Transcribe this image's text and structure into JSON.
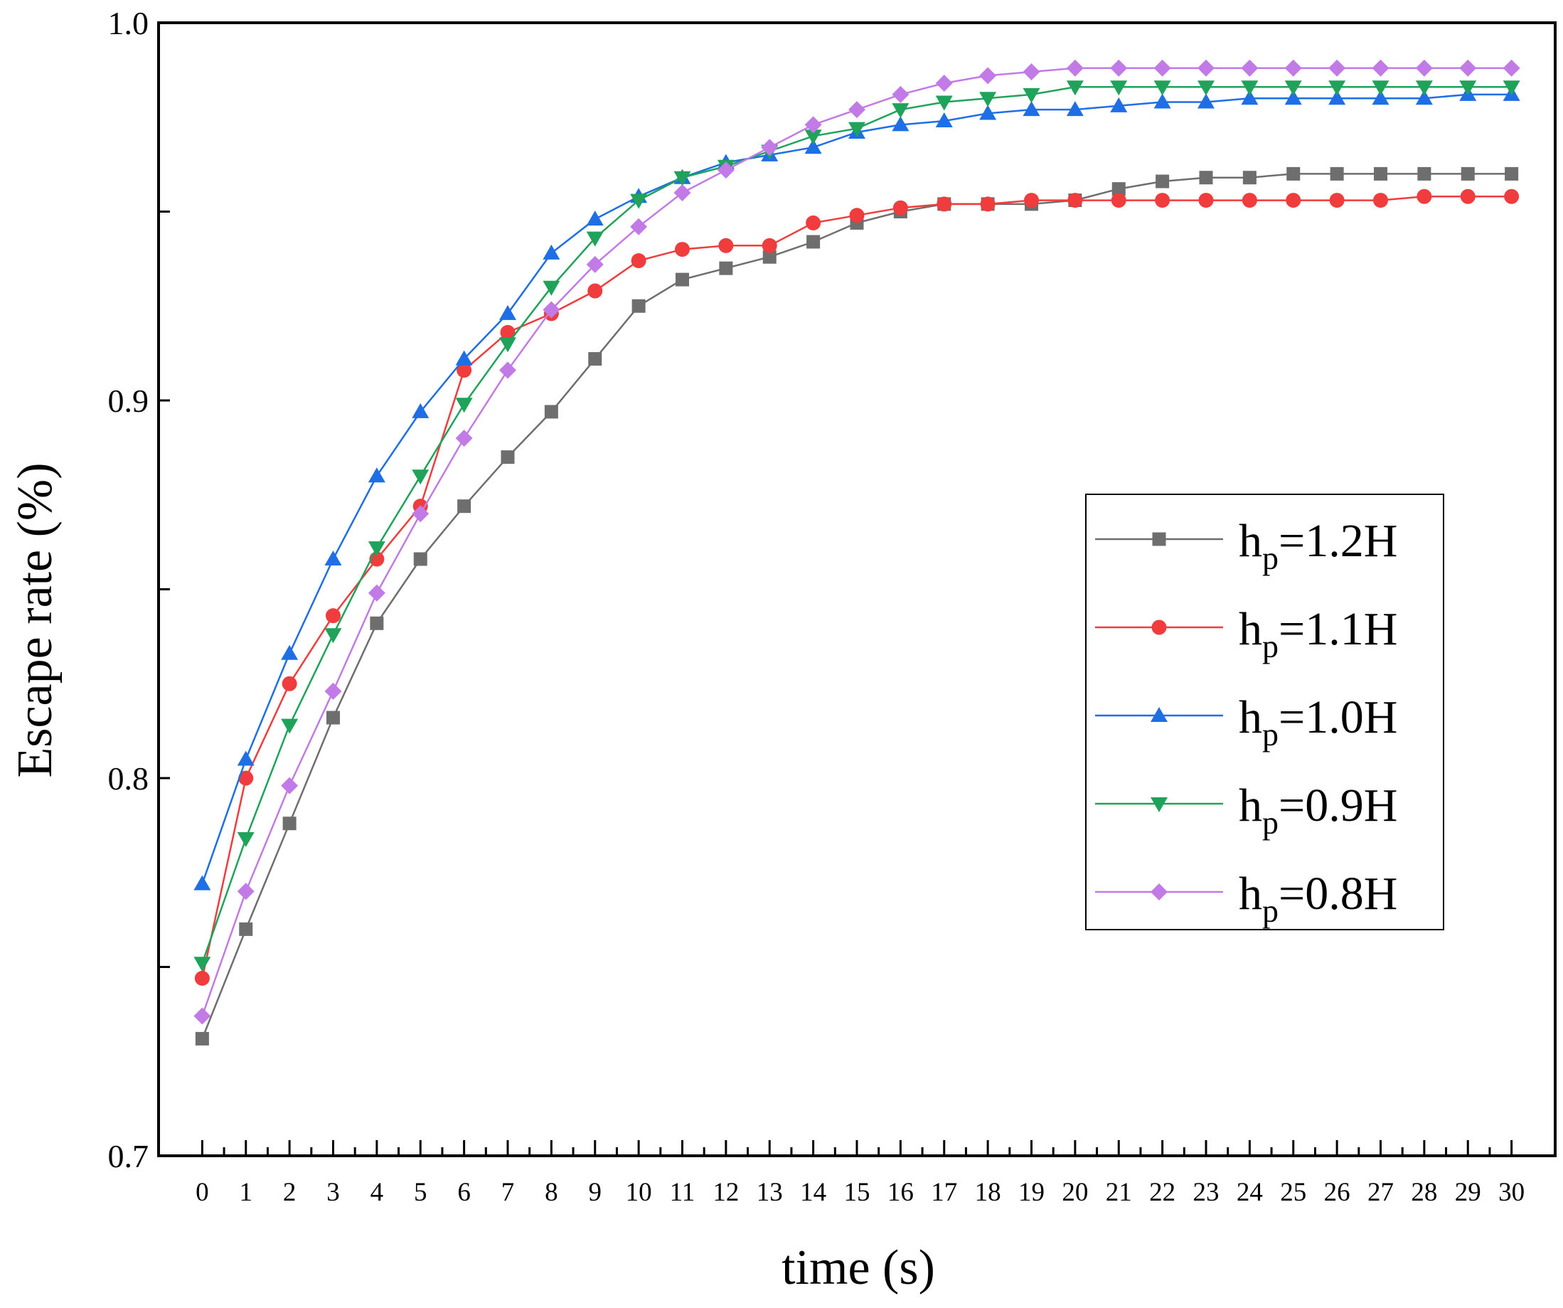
{
  "chart_data": {
    "type": "line",
    "title": "",
    "xlabel": "time (s)",
    "ylabel": "Escape rate (%)",
    "xlim": [
      -1,
      31
    ],
    "ylim": [
      0.7,
      1.0
    ],
    "x": [
      0,
      1,
      2,
      3,
      4,
      5,
      6,
      7,
      8,
      9,
      10,
      11,
      12,
      13,
      14,
      15,
      16,
      17,
      18,
      19,
      20,
      21,
      22,
      23,
      24,
      25,
      26,
      27,
      28,
      29,
      30
    ],
    "x_tick_labels": [
      "0",
      "1",
      "2",
      "3",
      "4",
      "5",
      "6",
      "7",
      "8",
      "9",
      "10",
      "11",
      "12",
      "13",
      "14",
      "15",
      "16",
      "17",
      "18",
      "19",
      "20",
      "21",
      "22",
      "23",
      "24",
      "25",
      "26",
      "27",
      "28",
      "29",
      "30"
    ],
    "y_ticks": [
      0.7,
      0.8,
      0.9,
      1.0
    ],
    "y_tick_labels": [
      "0.7",
      "0.8",
      "0.9",
      "1.0"
    ],
    "grid": false,
    "legend_position": "right-center",
    "series": [
      {
        "name": "hp=1.2H",
        "legend_main": "h",
        "legend_sub": "p",
        "legend_rest": "=1.2H",
        "color": "#6e6e6e",
        "marker": "square",
        "values": [
          0.731,
          0.76,
          0.788,
          0.816,
          0.841,
          0.858,
          0.872,
          0.885,
          0.897,
          0.911,
          0.925,
          0.932,
          0.935,
          0.938,
          0.942,
          0.947,
          0.95,
          0.952,
          0.952,
          0.952,
          0.953,
          0.956,
          0.958,
          0.959,
          0.959,
          0.96,
          0.96,
          0.96,
          0.96,
          0.96,
          0.96
        ]
      },
      {
        "name": "hp=1.1H",
        "legend_main": "h",
        "legend_sub": "p",
        "legend_rest": "=1.1H",
        "color": "#f03c3c",
        "marker": "circle",
        "values": [
          0.747,
          0.8,
          0.825,
          0.843,
          0.858,
          0.872,
          0.908,
          0.918,
          0.923,
          0.929,
          0.937,
          0.94,
          0.941,
          0.941,
          0.947,
          0.949,
          0.951,
          0.952,
          0.952,
          0.953,
          0.953,
          0.953,
          0.953,
          0.953,
          0.953,
          0.953,
          0.953,
          0.953,
          0.954,
          0.954,
          0.954
        ]
      },
      {
        "name": "hp=1.0H",
        "legend_main": "h",
        "legend_sub": "p",
        "legend_rest": "=1.0H",
        "color": "#1e6ee6",
        "marker": "triangle-up",
        "values": [
          0.772,
          0.805,
          0.833,
          0.858,
          0.88,
          0.897,
          0.911,
          0.923,
          0.939,
          0.948,
          0.954,
          0.959,
          0.963,
          0.965,
          0.967,
          0.971,
          0.973,
          0.974,
          0.976,
          0.977,
          0.977,
          0.978,
          0.979,
          0.979,
          0.98,
          0.98,
          0.98,
          0.98,
          0.98,
          0.981,
          0.981
        ]
      },
      {
        "name": "hp=0.9H",
        "legend_main": "h",
        "legend_sub": "p",
        "legend_rest": "=0.9H",
        "color": "#1fa35a",
        "marker": "triangle-down",
        "values": [
          0.751,
          0.784,
          0.814,
          0.838,
          0.861,
          0.88,
          0.899,
          0.915,
          0.93,
          0.943,
          0.953,
          0.959,
          0.962,
          0.966,
          0.97,
          0.972,
          0.977,
          0.979,
          0.98,
          0.981,
          0.983,
          0.983,
          0.983,
          0.983,
          0.983,
          0.983,
          0.983,
          0.983,
          0.983,
          0.983,
          0.983
        ]
      },
      {
        "name": "hp=0.8H",
        "legend_main": "h",
        "legend_sub": "p",
        "legend_rest": "=0.8H",
        "color": "#c27be6",
        "marker": "diamond",
        "values": [
          0.737,
          0.77,
          0.798,
          0.823,
          0.849,
          0.87,
          0.89,
          0.908,
          0.924,
          0.936,
          0.946,
          0.955,
          0.961,
          0.967,
          0.973,
          0.977,
          0.981,
          0.984,
          0.986,
          0.987,
          0.988,
          0.988,
          0.988,
          0.988,
          0.988,
          0.988,
          0.988,
          0.988,
          0.988,
          0.988,
          0.988
        ]
      }
    ]
  }
}
